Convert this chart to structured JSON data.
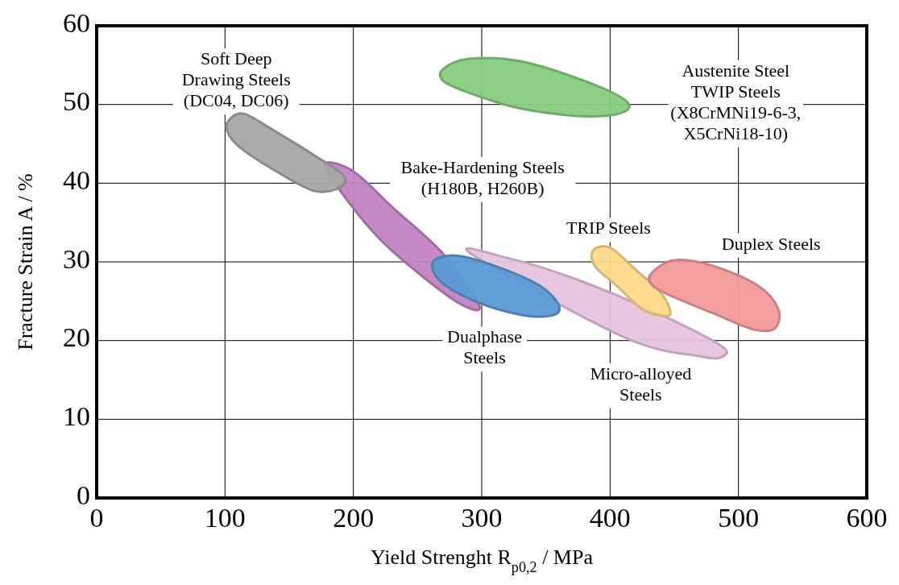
{
  "chart_data": {
    "type": "area",
    "xlabel": "Yield Strenght R$_{p0,2}$ / MPa",
    "ylabel": "Fracture Strain A / %",
    "xlim": [
      0,
      600
    ],
    "xticks": [
      0,
      100,
      200,
      300,
      400,
      500,
      600
    ],
    "ylim": [
      0,
      60
    ],
    "yticks": [
      0,
      10,
      20,
      30,
      40,
      50,
      60
    ],
    "grid": true,
    "series": [
      {
        "name": "Bake-Hardening Steels\n(H180B, H260B)",
        "color": "#c283c2",
        "x": [
          178,
          200,
          230,
          270,
          298,
          285,
          255,
          220,
          190
        ],
        "values": [
          42.5,
          41.5,
          37,
          31,
          24.5,
          24.5,
          28,
          33,
          39
        ]
      },
      {
        "name": "Soft Deep\nDrawing Steels\n(DC04, DC06)",
        "color": "#a6a6a6",
        "x": [
          103,
          115,
          140,
          170,
          192,
          190,
          170,
          140,
          112,
          102
        ],
        "values": [
          48,
          48.8,
          46.5,
          43.5,
          41,
          39.5,
          39,
          41.5,
          44.5,
          46.5
        ]
      },
      {
        "name": "Austenite Steel\nTWIP Steels\n(X8CrMNi19-6-3,\nX5CrNi18-10)",
        "color": "#86cd7e",
        "x": [
          270,
          290,
          330,
          380,
          412,
          410,
          380,
          330,
          290,
          270
        ],
        "values": [
          54.5,
          55.8,
          55.5,
          53,
          50.5,
          49,
          48.5,
          49.5,
          51.5,
          53
        ]
      },
      {
        "name": "Micro-alloyed\nSteels",
        "color": "#e6c4de",
        "x": [
          292,
          320,
          370,
          430,
          485,
          488,
          470,
          410
        ],
        "values": [
          31,
          30.5,
          28,
          24,
          19.5,
          18,
          18,
          20.5
        ]
      },
      {
        "name": "Dualphase\nSteels",
        "color": "#5b9bd5",
        "x": [
          262,
          280,
          310,
          345,
          360,
          355,
          330,
          295,
          268
        ],
        "values": [
          30,
          30.8,
          29.5,
          27,
          24.5,
          23.2,
          23.3,
          25,
          27.5
        ]
      },
      {
        "name": "TRIP Steels",
        "color": "#ffd98a",
        "x": [
          387,
          400,
          420,
          440,
          447,
          440,
          425,
          405,
          388
        ],
        "values": [
          31.5,
          31.8,
          29,
          26,
          23.5,
          23.2,
          24,
          27,
          29.5
        ]
      },
      {
        "name": "Duplex Steels",
        "color": "#f39a9a",
        "x": [
          432,
          450,
          480,
          515,
          531,
          528,
          510,
          480,
          450,
          433
        ],
        "values": [
          28.5,
          30.2,
          29.5,
          27,
          24,
          21.5,
          21.5,
          23.5,
          25.5,
          27
        ]
      }
    ]
  }
}
